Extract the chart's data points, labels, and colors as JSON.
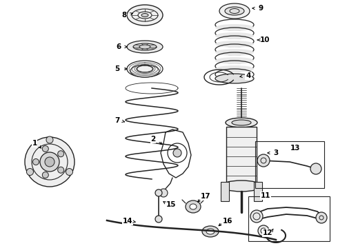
{
  "background": "#ffffff",
  "line_color": "#222222",
  "figsize": [
    4.9,
    3.6
  ],
  "dpi": 100,
  "label_fontsize": 7.5
}
